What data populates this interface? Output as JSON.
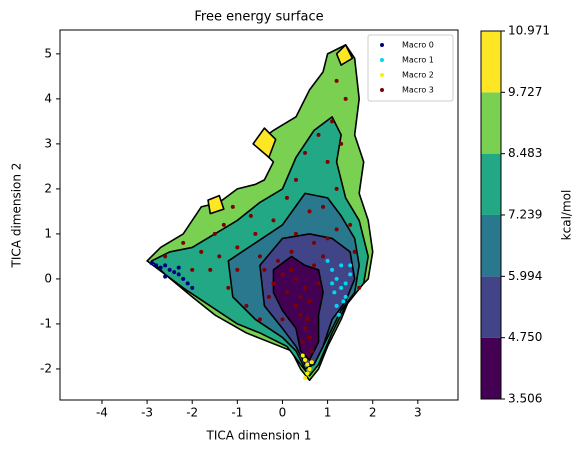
{
  "chart_data": {
    "type": "contour-scatter",
    "title": "Free energy surface",
    "x_label": "TICA dimension 1",
    "y_label": "TICA dimension 2",
    "xlim": [
      -4.93,
      3.89
    ],
    "ylim": [
      -2.69,
      5.53
    ],
    "xticks": [
      -4,
      -3,
      -2,
      -1,
      0,
      1,
      2,
      3
    ],
    "yticks": [
      -2,
      -1,
      0,
      1,
      2,
      3,
      4,
      5
    ],
    "colorbar_label": "kcal/mol",
    "levels": [
      3.506,
      {
        "value": 4.75,
        "label": "4.750"
      },
      5.994,
      7.239,
      8.483,
      9.727,
      10.971
    ],
    "colors": [
      "#440154",
      "#414487",
      "#2a788e",
      "#22a884",
      "#7ad151",
      "#fde725"
    ],
    "contours": [
      {
        "level": 8.483,
        "x": [
          -3.0,
          -2.7,
          -2.2,
          -1.8,
          -1.4,
          -1.0,
          -0.6,
          -0.4,
          -0.2,
          -0.6,
          -0.2,
          0.3,
          0.6,
          0.9,
          1.0,
          1.4,
          1.6,
          1.7,
          1.6,
          1.8,
          1.7,
          1.9,
          2.0,
          1.9,
          1.5,
          1.3,
          1.0,
          0.8,
          0.6,
          0.4,
          0.2,
          -0.3,
          -0.8,
          -1.5,
          -2.0,
          -2.6
        ],
        "y": [
          0.4,
          0.7,
          1.0,
          1.6,
          1.7,
          2.0,
          2.1,
          2.2,
          2.6,
          3.0,
          3.3,
          3.6,
          4.2,
          4.6,
          5.0,
          5.2,
          4.9,
          4.0,
          3.2,
          2.6,
          1.9,
          1.3,
          0.6,
          0.0,
          -0.4,
          -0.9,
          -1.5,
          -2.0,
          -2.25,
          -2.0,
          -1.6,
          -1.4,
          -1.2,
          -0.8,
          -0.4,
          0.1
        ]
      },
      {
        "level": 9.727,
        "x": [
          -0.65,
          -0.4,
          -0.15,
          -0.3
        ],
        "y": [
          3.0,
          3.35,
          3.1,
          2.7
        ]
      },
      {
        "level": 9.727,
        "x": [
          1.2,
          1.4,
          1.55,
          1.3
        ],
        "y": [
          5.0,
          5.2,
          4.9,
          4.75
        ]
      },
      {
        "level": 9.727,
        "x": [
          -1.65,
          -1.4,
          -1.3,
          -1.6
        ],
        "y": [
          1.75,
          1.85,
          1.55,
          1.45
        ]
      },
      {
        "level": 7.239,
        "x": [
          -2.9,
          -2.5,
          -2.0,
          -1.5,
          -1.0,
          -0.5,
          0.0,
          0.3,
          0.7,
          1.1,
          1.3,
          1.2,
          1.4,
          1.7,
          1.9,
          1.8,
          1.4,
          1.1,
          0.8,
          0.6,
          0.4,
          0.1,
          -0.5,
          -1.0,
          -1.6,
          -2.2,
          -2.6
        ],
        "y": [
          0.4,
          0.6,
          0.7,
          1.0,
          1.3,
          1.7,
          2.0,
          2.7,
          3.3,
          3.6,
          3.2,
          2.6,
          1.8,
          1.3,
          0.5,
          -0.1,
          -0.6,
          -1.2,
          -1.9,
          -2.15,
          -1.9,
          -1.5,
          -1.2,
          -1.0,
          -0.6,
          -0.2,
          0.1
        ]
      },
      {
        "level": 5.994,
        "x": [
          -1.2,
          -0.6,
          0.0,
          0.5,
          1.0,
          1.3,
          1.6,
          1.7,
          1.6,
          1.3,
          1.0,
          0.7,
          0.5,
          0.3,
          0.0,
          -0.6,
          -1.1
        ],
        "y": [
          0.4,
          0.8,
          1.2,
          1.9,
          1.8,
          1.4,
          0.9,
          0.3,
          -0.3,
          -0.7,
          -1.3,
          -1.9,
          -2.0,
          -1.6,
          -1.3,
          -0.9,
          -0.4
        ]
      },
      {
        "level": {
          "value": 4.75,
          "label": "4.750"
        },
        "x": [
          -0.5,
          0.0,
          0.6,
          1.1,
          1.5,
          1.6,
          1.4,
          1.1,
          0.9,
          0.7,
          0.5,
          0.3,
          0.0,
          -0.4
        ],
        "y": [
          0.3,
          0.9,
          1.0,
          0.9,
          0.6,
          0.0,
          -0.5,
          -0.9,
          -1.5,
          -1.9,
          -1.9,
          -1.5,
          -1.1,
          -0.6
        ]
      },
      {
        "level": 3.506,
        "x": [
          -0.2,
          0.2,
          0.5,
          0.8,
          0.9,
          0.8,
          0.8,
          0.6,
          0.4,
          0.3,
          0.0,
          -0.2
        ],
        "y": [
          0.2,
          0.5,
          0.3,
          0.2,
          -0.3,
          -0.8,
          -1.4,
          -1.8,
          -1.6,
          -1.1,
          -0.7,
          -0.3
        ]
      }
    ],
    "series": [
      {
        "name": "Macro 3",
        "color": "#800000",
        "x": [
          0.3,
          0.5,
          0.6,
          0.4,
          0.5,
          0.6,
          0.4,
          0.2,
          0.0,
          -0.2,
          -0.4,
          -0.1,
          0.7,
          0.8,
          0.3,
          0.55,
          0.45,
          0.65,
          0.1,
          -0.3,
          0.9,
          1.0,
          0.6,
          0.9,
          1.2,
          1.0,
          1.3,
          1.1,
          1.4,
          1.2,
          0.8,
          0.5,
          0.3,
          -0.2,
          -0.6,
          -1.0,
          -1.4,
          -1.8,
          -2.2,
          -2.6,
          -1.6,
          -1.2,
          -0.8,
          -0.5,
          -1.0,
          -2.0,
          -1.5,
          -1.1,
          -0.7,
          0.1,
          1.5,
          1.6,
          1.7,
          0.2,
          -0.5,
          0.7,
          0.0,
          0.3,
          1.2,
          -1.3
        ],
        "y": [
          0.0,
          -0.2,
          -0.5,
          -0.8,
          -1.1,
          -1.3,
          -0.4,
          0.2,
          0.1,
          -0.1,
          0.2,
          0.4,
          0.3,
          -0.1,
          -0.6,
          -0.9,
          -1.4,
          -1.6,
          -0.3,
          -0.4,
          0.5,
          0.9,
          1.5,
          1.6,
          2.0,
          2.6,
          3.0,
          3.5,
          4.0,
          4.4,
          3.2,
          2.8,
          2.2,
          1.3,
          1.0,
          0.7,
          0.5,
          0.6,
          0.8,
          0.5,
          0.2,
          -0.2,
          -0.6,
          -0.9,
          0.2,
          0.2,
          1.0,
          1.6,
          1.4,
          1.8,
          1.2,
          0.6,
          -0.2,
          0.6,
          0.5,
          0.8,
          -0.9,
          1.0,
          1.1,
          1.2
        ]
      },
      {
        "name": "Macro 0",
        "color": "#000080",
        "x": [
          -2.9,
          -2.8,
          -2.7,
          -2.6,
          -2.5,
          -2.4,
          -2.3,
          -2.2,
          -2.1,
          -2.0,
          -2.6,
          -2.3
        ],
        "y": [
          0.35,
          0.3,
          0.25,
          0.3,
          0.2,
          0.15,
          0.1,
          0.0,
          -0.1,
          -0.2,
          0.05,
          0.25
        ]
      },
      {
        "name": "Macro 1",
        "color": "#00d8f0",
        "x": [
          1.0,
          1.1,
          1.2,
          1.3,
          1.4,
          1.5,
          1.2,
          1.3,
          1.1,
          1.4,
          1.25,
          1.35,
          1.5,
          1.15
        ],
        "y": [
          0.4,
          0.2,
          0.0,
          -0.2,
          -0.4,
          0.1,
          -0.6,
          0.3,
          -0.1,
          -0.1,
          -0.8,
          -0.5,
          0.3,
          -0.3
        ]
      },
      {
        "name": "Macro 2",
        "color": "#ffee00",
        "x": [
          0.45,
          0.5,
          0.55,
          0.6,
          0.55,
          0.5,
          0.65
        ],
        "y": [
          -1.7,
          -1.8,
          -1.9,
          -2.0,
          -2.1,
          -2.2,
          -1.85
        ]
      }
    ],
    "legend_order": [
      "Macro 0",
      "Macro 1",
      "Macro 2",
      "Macro 3"
    ]
  }
}
